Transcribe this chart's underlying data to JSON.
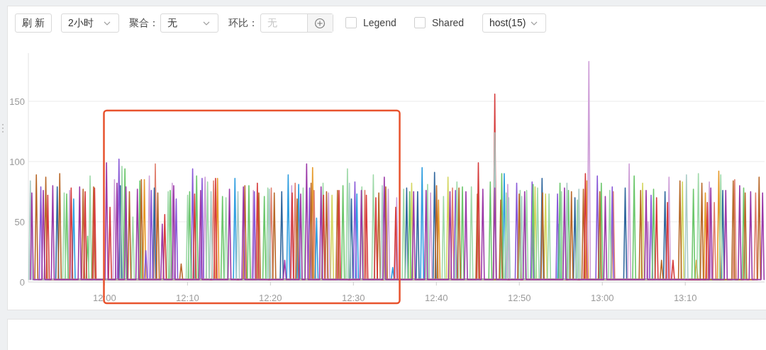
{
  "chart_data": [
    {
      "type": "other",
      "annotations": [
        "刷 新",
        "2小时",
        "聚合：",
        "无",
        "环比：",
        "无",
        "Legend",
        "Shared",
        "host(15)"
      ]
    },
    {
      "type": "line",
      "xlim": [
        11.847,
        13.326
      ],
      "ylim": [
        0,
        190
      ],
      "yticks": [
        0,
        50,
        100,
        150
      ],
      "grid": "y",
      "xticks": [
        {
          "value": 12,
          "label": "12:00"
        },
        {
          "value": 12.16667,
          "label": "12:10"
        },
        {
          "value": 12.33333,
          "label": "12:20"
        },
        {
          "value": 12.5,
          "label": "12:30"
        },
        {
          "value": 12.66667,
          "label": "12:40"
        },
        {
          "value": 12.83333,
          "label": "12:50"
        },
        {
          "value": 13,
          "label": "13:00"
        },
        {
          "value": 13.16667,
          "label": "13:10"
        }
      ],
      "series": [
        {
          "color": "#d4d660",
          "x": [
            12.454,
            12.457,
            12.46,
            12.614,
            12.617,
            12.62,
            12.687,
            12.69,
            12.693,
            12.862,
            12.865,
            12.868,
            12.883,
            12.886,
            12.889,
            13.078,
            13.081,
            13.084,
            13.158,
            13.161,
            13.164
          ],
          "values": [
            2,
            72,
            2,
            2,
            82,
            2,
            2,
            87,
            2,
            2,
            79,
            2,
            2,
            73,
            2,
            2,
            82,
            2,
            2,
            83,
            2
          ]
        },
        {
          "color": "#e69a2a",
          "x": [
            12.077,
            12.08,
            12.083,
            12.224,
            12.227,
            12.23,
            12.415,
            12.418,
            12.421,
            12.668,
            12.671,
            12.674,
            12.966,
            12.969,
            12.972,
            13.186,
            13.189,
            13.192,
            13.204,
            13.207,
            13.21,
            13.231,
            13.234,
            13.237
          ],
          "values": [
            2,
            85,
            2,
            2,
            86,
            2,
            2,
            95,
            2,
            2,
            68,
            2,
            2,
            84,
            2,
            2,
            18,
            2,
            2,
            74,
            2,
            2,
            92,
            2
          ]
        },
        {
          "color": "#e07f6e",
          "x": [
            12.099,
            12.102,
            12.105,
            12.216,
            12.219,
            12.222,
            12.332,
            12.335,
            12.338,
            12.38,
            12.383,
            12.386,
            12.418,
            12.421,
            12.424,
            12.52,
            12.523,
            12.526,
            12.696,
            12.699,
            12.702,
            13.019,
            13.022,
            13.025,
            13.222,
            13.225,
            13.228,
            13.263,
            13.266,
            13.269,
            13.305,
            13.308,
            13.311
          ],
          "values": [
            2,
            98,
            2,
            2,
            84,
            2,
            2,
            78,
            2,
            2,
            82,
            2,
            2,
            76,
            2,
            2,
            76,
            2,
            2,
            78,
            2,
            2,
            75,
            2,
            2,
            66,
            2,
            2,
            85,
            2,
            2,
            74,
            2
          ]
        },
        {
          "color": "#2f9ee0",
          "x": [
            11.935,
            11.938,
            11.941,
            12.259,
            12.262,
            12.265,
            12.366,
            12.369,
            12.372,
            12.387,
            12.39,
            12.393,
            12.423,
            12.426,
            12.429,
            12.504,
            12.507,
            12.51,
            12.576,
            12.579,
            12.582,
            12.635,
            12.638,
            12.641,
            12.8,
            12.803,
            12.806,
            12.91,
            12.913,
            12.916
          ],
          "values": [
            2,
            69,
            2,
            2,
            86,
            2,
            2,
            89,
            2,
            2,
            81,
            2,
            2,
            53,
            2,
            2,
            73,
            2,
            2,
            12,
            2,
            2,
            95,
            2,
            2,
            90,
            2,
            2,
            48,
            2
          ]
        },
        {
          "color": "#30679e",
          "x": [
            11.902,
            11.905,
            11.908,
            12.029,
            12.032,
            12.035,
            12.097,
            12.1,
            12.103,
            12.353,
            12.356,
            12.359,
            12.493,
            12.496,
            12.499,
            12.604,
            12.607,
            12.61,
            12.626,
            12.629,
            12.632,
            12.66,
            12.663,
            12.666,
            12.876,
            12.879,
            12.882,
            12.942,
            12.945,
            12.948,
            13.043,
            13.046,
            13.049,
            13.123,
            13.126,
            13.129,
            13.239,
            13.242,
            13.245
          ],
          "values": [
            2,
            79,
            2,
            2,
            80,
            2,
            2,
            78,
            2,
            2,
            75,
            2,
            2,
            69,
            2,
            2,
            78,
            2,
            2,
            75,
            2,
            2,
            91,
            2,
            2,
            86,
            2,
            2,
            70,
            2,
            2,
            78,
            2,
            2,
            75,
            2,
            2,
            76,
            2
          ]
        },
        {
          "color": "#cf9fd8",
          "x": [
            11.927,
            11.93,
            11.933,
            12.017,
            12.02,
            12.023,
            12.087,
            12.09,
            12.093,
            12.133,
            12.136,
            12.139,
            12.199,
            12.202,
            12.205,
            12.296,
            12.299,
            12.302,
            12.373,
            12.376,
            12.379,
            12.447,
            12.45,
            12.453,
            12.567,
            12.57,
            12.573,
            12.584,
            12.587,
            12.59,
            12.652,
            12.655,
            12.658,
            12.807,
            12.81,
            12.813,
            12.97,
            12.973,
            12.976,
            13.051,
            13.054,
            13.057,
            13.089,
            13.092,
            13.095,
            13.131,
            13.134,
            13.137,
            13.212,
            13.215,
            13.218
          ],
          "values": [
            2,
            76,
            2,
            2,
            85,
            2,
            2,
            88,
            2,
            2,
            82,
            2,
            2,
            87,
            2,
            2,
            76,
            2,
            2,
            80,
            2,
            2,
            74,
            2,
            2,
            77,
            2,
            2,
            70,
            2,
            2,
            74,
            2,
            2,
            81,
            2,
            2,
            183,
            2,
            2,
            98,
            2,
            2,
            50,
            2,
            2,
            87,
            2,
            2,
            83,
            2
          ]
        },
        {
          "color": "#8a5ad8",
          "x": [
            11.869,
            11.872,
            11.875,
            12.026,
            12.029,
            12.032,
            12.08,
            12.083,
            12.086,
            12.091,
            12.094,
            12.097,
            12.141,
            12.144,
            12.147,
            12.174,
            12.177,
            12.18,
            12.193,
            12.196,
            12.199,
            12.298,
            12.301,
            12.304,
            12.409,
            12.412,
            12.415,
            12.5,
            12.503,
            12.506,
            12.702,
            12.705,
            12.708,
            12.825,
            12.828,
            12.831,
            12.856,
            12.859,
            12.862,
            12.907,
            12.91,
            12.913,
            12.987,
            12.99,
            12.993,
            13.017,
            13.02,
            13.023,
            13.095,
            13.098,
            13.101
          ],
          "values": [
            2,
            79,
            2,
            2,
            102,
            2,
            2,
            26,
            2,
            2,
            76,
            2,
            2,
            69,
            2,
            2,
            94,
            2,
            2,
            86,
            2,
            2,
            75,
            2,
            2,
            78,
            2,
            2,
            83,
            2,
            2,
            76,
            2,
            2,
            82,
            2,
            2,
            83,
            2,
            2,
            73,
            2,
            2,
            88,
            2,
            2,
            79,
            2,
            2,
            72,
            2
          ]
        },
        {
          "color": "#6cc76c",
          "x": [
            11.921,
            11.924,
            11.927,
            11.963,
            11.966,
            11.969,
            12.038,
            12.041,
            12.044,
            12.068,
            12.071,
            12.074,
            12.129,
            12.132,
            12.135,
            12.168,
            12.171,
            12.174,
            12.182,
            12.185,
            12.188,
            12.234,
            12.237,
            12.24,
            12.287,
            12.29,
            12.293,
            12.318,
            12.321,
            12.324,
            12.476,
            12.479,
            12.482,
            12.61,
            12.613,
            12.616,
            12.716,
            12.719,
            12.722,
            12.772,
            12.775,
            12.778,
            12.795,
            12.798,
            12.801,
            12.858,
            12.861,
            12.864,
            12.912,
            12.915,
            12.918,
            12.929,
            12.932,
            12.935,
            12.995,
            12.998,
            13.001,
            13.061,
            13.064,
            13.067,
            13.1,
            13.103,
            13.106,
            13.18,
            13.183,
            13.186,
            13.281,
            13.284,
            13.287
          ],
          "values": [
            2,
            73,
            2,
            2,
            38,
            2,
            2,
            94,
            2,
            2,
            84,
            2,
            2,
            76,
            2,
            2,
            75,
            2,
            2,
            88,
            2,
            2,
            71,
            2,
            2,
            80,
            2,
            2,
            71,
            2,
            2,
            80,
            2,
            2,
            75,
            2,
            2,
            79,
            2,
            2,
            83,
            2,
            2,
            90,
            2,
            2,
            81,
            2,
            2,
            82,
            2,
            2,
            76,
            2,
            2,
            82,
            2,
            2,
            88,
            2,
            2,
            77,
            2,
            2,
            77,
            2,
            2,
            78,
            2
          ]
        },
        {
          "color": "#9ed9a8",
          "x": [
            11.916,
            11.919,
            11.922,
            11.968,
            11.971,
            11.974,
            12.032,
            12.035,
            12.038,
            12.054,
            12.057,
            12.06,
            12.125,
            12.128,
            12.131,
            12.164,
            12.167,
            12.17,
            12.204,
            12.207,
            12.21,
            12.241,
            12.244,
            12.247,
            12.325,
            12.328,
            12.331,
            12.396,
            12.399,
            12.402,
            12.436,
            12.439,
            12.442,
            12.485,
            12.488,
            12.491,
            12.514,
            12.517,
            12.52,
            12.537,
            12.54,
            12.543,
            12.598,
            12.601,
            12.604,
            12.646,
            12.649,
            12.652,
            12.678,
            12.681,
            12.684,
            12.705,
            12.708,
            12.711,
            12.734,
            12.737,
            12.74,
            12.804,
            12.807,
            12.81,
            12.832,
            12.835,
            12.838,
            12.845,
            12.848,
            12.851,
            12.867,
            12.87,
            12.873,
            12.89,
            12.893,
            12.896,
            12.915,
            12.918,
            12.921,
            12.947,
            12.95,
            12.953,
            13.012,
            13.015,
            13.018,
            13.19,
            13.193,
            13.196,
            13.235,
            13.238,
            13.241
          ],
          "values": [
            2,
            74,
            2,
            2,
            88,
            2,
            2,
            96,
            2,
            2,
            54,
            2,
            2,
            75,
            2,
            2,
            72,
            2,
            2,
            83,
            2,
            2,
            70,
            2,
            2,
            78,
            2,
            2,
            78,
            2,
            2,
            82,
            2,
            2,
            94,
            2,
            2,
            79,
            2,
            2,
            89,
            2,
            2,
            77,
            2,
            2,
            81,
            2,
            2,
            71,
            2,
            2,
            83,
            2,
            2,
            79,
            2,
            2,
            74,
            2,
            2,
            76,
            2,
            2,
            76,
            2,
            2,
            78,
            2,
            2,
            73,
            2,
            2,
            75,
            2,
            2,
            68,
            2,
            2,
            76,
            2,
            2,
            90,
            2,
            2,
            89,
            2
          ]
        },
        {
          "color": "#b8692a",
          "x": [
            11.86,
            11.863,
            11.866,
            11.879,
            11.882,
            11.885,
            11.907,
            11.91,
            11.913,
            11.954,
            11.957,
            11.96,
            11.975,
            11.978,
            11.981,
            12.047,
            12.05,
            12.053,
            12.071,
            12.074,
            12.077,
            12.104,
            12.107,
            12.11,
            12.151,
            12.154,
            12.157,
            12.279,
            12.282,
            12.285,
            12.307,
            12.31,
            12.313,
            12.338,
            12.341,
            12.344,
            12.384,
            12.387,
            12.39,
            12.412,
            12.415,
            12.418,
            12.443,
            12.446,
            12.449,
            12.465,
            12.468,
            12.471,
            12.548,
            12.551,
            12.554,
            12.562,
            12.565,
            12.568,
            12.664,
            12.667,
            12.67,
            12.709,
            12.712,
            12.715,
            12.746,
            12.749,
            12.752,
            12.793,
            12.796,
            12.799,
            12.83,
            12.833,
            12.836,
            12.877,
            12.88,
            12.883,
            12.935,
            12.938,
            12.941,
            12.959,
            12.962,
            12.965,
            12.992,
            12.995,
            12.998,
            13.074,
            13.077,
            13.08,
            13.116,
            13.119,
            13.122,
            13.153,
            13.156,
            13.159,
            13.197,
            13.2,
            13.203,
            13.26,
            13.263,
            13.266,
            13.284,
            13.287,
            13.29,
            13.312,
            13.315,
            13.318
          ],
          "values": [
            2,
            89,
            2,
            2,
            87,
            2,
            2,
            90,
            2,
            2,
            77,
            2,
            2,
            79,
            2,
            2,
            75,
            2,
            2,
            85,
            2,
            2,
            74,
            2,
            2,
            15,
            2,
            2,
            80,
            2,
            2,
            74,
            2,
            2,
            74,
            2,
            2,
            69,
            2,
            2,
            82,
            2,
            2,
            75,
            2,
            2,
            76,
            2,
            2,
            74,
            2,
            2,
            79,
            2,
            2,
            80,
            2,
            2,
            78,
            2,
            2,
            73,
            2,
            2,
            68,
            2,
            2,
            73,
            2,
            2,
            74,
            2,
            2,
            75,
            2,
            2,
            77,
            2,
            2,
            75,
            2,
            2,
            76,
            2,
            2,
            18,
            2,
            2,
            84,
            2,
            2,
            82,
            2,
            2,
            84,
            2,
            2,
            74,
            2,
            2,
            87,
            2
          ]
        },
        {
          "color": "#d63c3c",
          "x": [
            11.883,
            11.886,
            11.889,
            11.93,
            11.933,
            11.936,
            11.958,
            11.961,
            11.964,
            11.977,
            11.98,
            11.983,
            12.008,
            12.011,
            12.014,
            12.118,
            12.121,
            12.124,
            12.178,
            12.181,
            12.184,
            12.22,
            12.223,
            12.226,
            12.304,
            12.307,
            12.31,
            12.374,
            12.377,
            12.38,
            12.437,
            12.44,
            12.443,
            12.468,
            12.471,
            12.474,
            12.523,
            12.526,
            12.529,
            12.542,
            12.545,
            12.548,
            12.582,
            12.585,
            12.588,
            12.748,
            12.751,
            12.754,
            12.781,
            12.784,
            12.787,
            12.963,
            12.966,
            12.969,
            13.106,
            13.109,
            13.112,
            13.128,
            13.131,
            13.134,
            13.139,
            13.142,
            13.145,
            13.208,
            13.211,
            13.214
          ],
          "values": [
            2,
            72,
            2,
            2,
            78,
            2,
            2,
            75,
            2,
            2,
            78,
            2,
            2,
            62,
            2,
            2,
            56,
            2,
            2,
            73,
            2,
            2,
            86,
            2,
            2,
            82,
            2,
            2,
            74,
            2,
            2,
            72,
            2,
            2,
            76,
            2,
            2,
            72,
            2,
            2,
            70,
            2,
            2,
            62,
            2,
            2,
            99,
            2,
            2,
            156,
            2,
            2,
            90,
            2,
            2,
            70,
            2,
            2,
            66,
            2,
            2,
            18,
            2,
            2,
            66,
            2
          ]
        },
        {
          "color": "#a9cbc6",
          "x": [
            11.848,
            11.851,
            11.854,
            12.211,
            12.214,
            12.217,
            12.265,
            12.268,
            12.271,
            12.328,
            12.331,
            12.334,
            12.489,
            12.492,
            12.495,
            12.555,
            12.558,
            12.561,
            12.781,
            12.784,
            12.787,
            12.809,
            12.812,
            12.815,
            12.835,
            12.838,
            12.841,
            12.926,
            12.929,
            12.932,
            12.95,
            12.953,
            12.956,
            13.166,
            13.169,
            13.172
          ],
          "values": [
            2,
            84,
            2,
            2,
            75,
            2,
            2,
            75,
            2,
            2,
            77,
            2,
            2,
            82,
            2,
            2,
            80,
            2,
            2,
            124,
            2,
            2,
            70,
            2,
            2,
            71,
            2,
            2,
            82,
            2,
            2,
            77,
            2,
            2,
            89,
            2
          ]
        },
        {
          "color": "#9b3aa8",
          "x": [
            11.851,
            11.854,
            11.857,
            11.874,
            11.877,
            11.88,
            11.893,
            11.896,
            11.899,
            11.947,
            11.95,
            11.953,
            12.001,
            12.004,
            12.007,
            12.022,
            12.025,
            12.028,
            12.04,
            12.043,
            12.046,
            12.063,
            12.066,
            12.069,
            12.113,
            12.116,
            12.119,
            12.136,
            12.139,
            12.142,
            12.19,
            12.193,
            12.196,
            12.248,
            12.251,
            12.254,
            12.276,
            12.279,
            12.282,
            12.359,
            12.362,
            12.365,
            12.391,
            12.394,
            12.397,
            12.403,
            12.406,
            12.409,
            12.432,
            12.435,
            12.438,
            12.513,
            12.516,
            12.519,
            12.559,
            12.562,
            12.565,
            12.618,
            12.621,
            12.624,
            12.643,
            12.646,
            12.649,
            12.691,
            12.694,
            12.697,
            12.723,
            12.726,
            12.729,
            12.757,
            12.76,
            12.763,
            12.781,
            12.784,
            12.787,
            12.841,
            12.844,
            12.847,
            12.921,
            12.924,
            12.927,
            13.003,
            13.006,
            13.009,
            13.085,
            13.088,
            13.091,
            13.215,
            13.218,
            13.221,
            13.245,
            13.248,
            13.251,
            13.273,
            13.276,
            13.279,
            13.295,
            13.298,
            13.301,
            13.319,
            13.322,
            13.325
          ],
          "values": [
            2,
            74,
            2,
            2,
            76,
            2,
            2,
            80,
            2,
            2,
            79,
            2,
            2,
            99,
            2,
            2,
            82,
            2,
            2,
            79,
            2,
            2,
            77,
            2,
            2,
            48,
            2,
            2,
            80,
            2,
            2,
            76,
            2,
            2,
            77,
            2,
            2,
            79,
            2,
            2,
            18,
            2,
            2,
            73,
            2,
            2,
            98,
            2,
            2,
            79,
            2,
            2,
            76,
            2,
            2,
            87,
            2,
            2,
            75,
            2,
            2,
            76,
            2,
            2,
            75,
            2,
            2,
            75,
            2,
            2,
            77,
            2,
            2,
            78,
            2,
            2,
            75,
            2,
            2,
            78,
            2,
            2,
            71,
            2,
            2,
            76,
            2,
            2,
            78,
            2,
            2,
            76,
            2,
            2,
            80,
            2,
            2,
            75,
            2,
            2,
            74,
            2
          ]
        }
      ]
    }
  ]
}
